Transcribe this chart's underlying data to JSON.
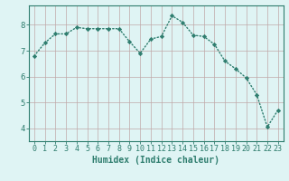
{
  "x": [
    0,
    1,
    2,
    3,
    4,
    5,
    6,
    7,
    8,
    9,
    10,
    11,
    12,
    13,
    14,
    15,
    16,
    17,
    18,
    19,
    20,
    21,
    22,
    23
  ],
  "y": [
    6.8,
    7.3,
    7.65,
    7.65,
    7.9,
    7.85,
    7.85,
    7.85,
    7.85,
    7.35,
    6.9,
    7.45,
    7.55,
    8.35,
    8.1,
    7.6,
    7.55,
    7.25,
    6.6,
    6.3,
    5.95,
    5.3,
    4.05,
    4.7
  ],
  "line_color": "#2e7d6e",
  "marker": "D",
  "marker_size": 2.2,
  "line_width": 1.0,
  "bg_color": "#dff4f4",
  "grid_color": "#c0a8a8",
  "axis_color": "#2e7d6e",
  "xlabel": "Humidex (Indice chaleur)",
  "xlabel_fontsize": 7,
  "tick_fontsize": 6,
  "ylim": [
    3.5,
    8.75
  ],
  "xlim": [
    -0.5,
    23.5
  ],
  "yticks": [
    4,
    5,
    6,
    7,
    8
  ],
  "xticks": [
    0,
    1,
    2,
    3,
    4,
    5,
    6,
    7,
    8,
    9,
    10,
    11,
    12,
    13,
    14,
    15,
    16,
    17,
    18,
    19,
    20,
    21,
    22,
    23
  ]
}
